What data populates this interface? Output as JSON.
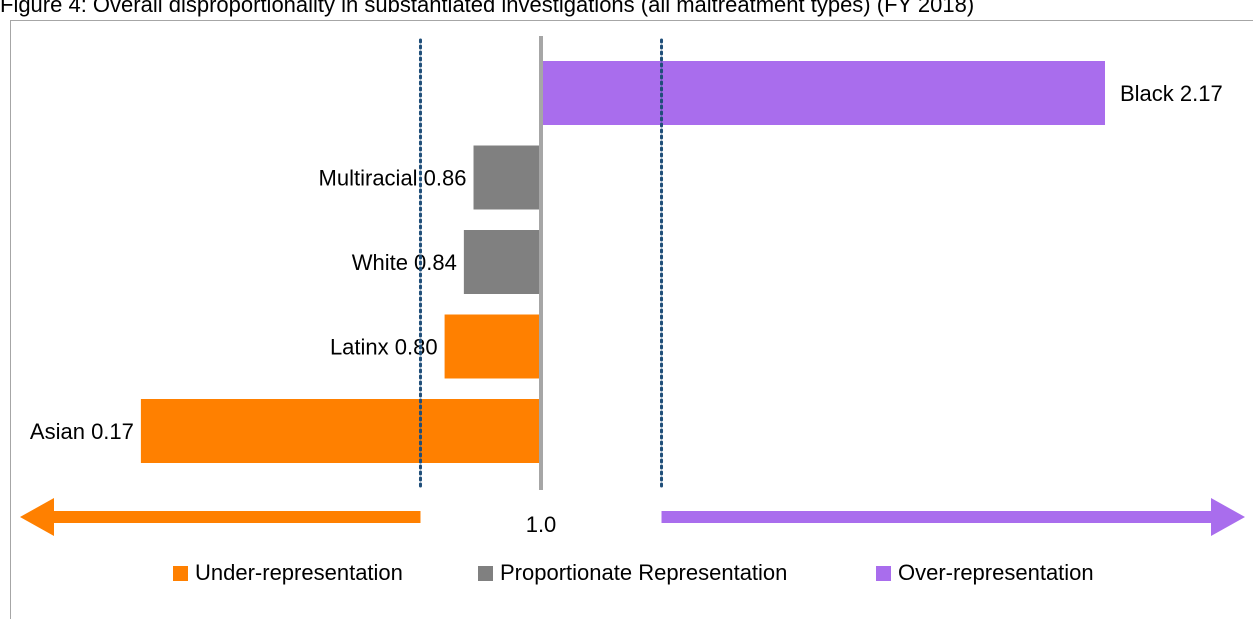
{
  "title": "Figure 4: Overall disproportionality in substantiated investigations (all maltreatment types) (FY 2018)",
  "colors": {
    "under": "#ff8000",
    "proportionate": "#808080",
    "over": "#a96ded",
    "threshold_line": "#1f4e79",
    "reference_line": "#a6a6a6"
  },
  "chart_data": {
    "type": "bar",
    "orientation": "horizontal",
    "reference_value": 1.0,
    "reference_label": "1.0",
    "thresholds": [
      0.75,
      1.25
    ],
    "categories": [
      "Black",
      "Multiracial",
      "White",
      "Latinx",
      "Asian"
    ],
    "values": [
      2.17,
      0.86,
      0.84,
      0.8,
      0.17
    ],
    "labels": [
      "Black 2.17",
      "Multiracial 0.86",
      "White 0.84",
      "Latinx 0.80",
      "Asian 0.17"
    ],
    "groups": [
      "over",
      "proportionate",
      "proportionate",
      "under",
      "under"
    ],
    "legend": [
      {
        "key": "under",
        "label": "Under-representation"
      },
      {
        "key": "proportionate",
        "label": "Proportionate Representation"
      },
      {
        "key": "over",
        "label": "Over-representation"
      }
    ],
    "legend_position": "bottom",
    "grid": false
  }
}
